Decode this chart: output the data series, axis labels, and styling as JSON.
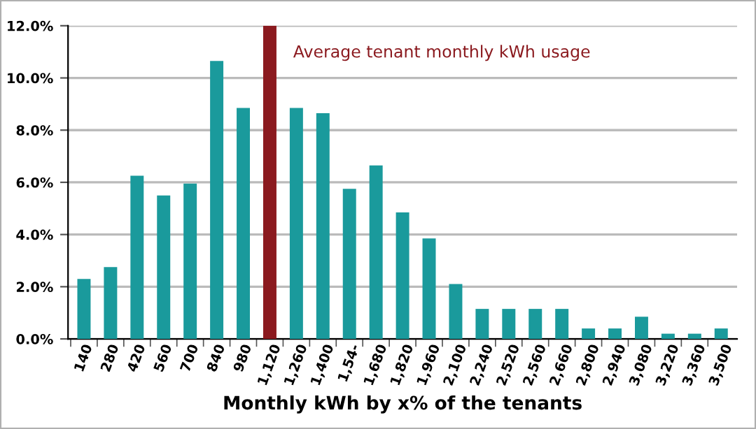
{
  "chart_data": {
    "type": "bar",
    "xlabel": "Monthly kWh by x% of the tenants",
    "categories": [
      "140",
      "280",
      "420",
      "560",
      "700",
      "840",
      "980",
      "1,120",
      "1,260",
      "1,400",
      "1,54-",
      "1,680",
      "1,820",
      "1,960",
      "2,100",
      "2,240",
      "2,520",
      "2,560",
      "2,660",
      "2,800",
      "2,940",
      "3,080",
      "3,220",
      "3,360",
      "3,500"
    ],
    "values": [
      2.3,
      2.75,
      6.25,
      5.5,
      5.95,
      10.65,
      8.85,
      12.0,
      8.85,
      8.65,
      5.75,
      6.65,
      4.85,
      3.85,
      2.1,
      1.15,
      1.15,
      1.15,
      1.15,
      0.4,
      0.4,
      0.85,
      0.2,
      0.2,
      0.4
    ],
    "colors": [
      "#1a9a9c",
      "#1a9a9c",
      "#1a9a9c",
      "#1a9a9c",
      "#1a9a9c",
      "#1a9a9c",
      "#1a9a9c",
      "#8b1a1f",
      "#1a9a9c",
      "#1a9a9c",
      "#1a9a9c",
      "#1a9a9c",
      "#1a9a9c",
      "#1a9a9c",
      "#1a9a9c",
      "#1a9a9c",
      "#1a9a9c",
      "#1a9a9c",
      "#1a9a9c",
      "#1a9a9c",
      "#1a9a9c",
      "#1a9a9c",
      "#1a9a9c",
      "#1a9a9c",
      "#1a9a9c"
    ],
    "ylim": [
      0,
      12
    ],
    "yticks": [
      {
        "value": 0,
        "label": "0.0%"
      },
      {
        "value": 2,
        "label": "2.0%"
      },
      {
        "value": 4,
        "label": "4.0%"
      },
      {
        "value": 6,
        "label": "6.0%"
      },
      {
        "value": 8,
        "label": "8.0%"
      },
      {
        "value": 10,
        "label": "10.0%"
      },
      {
        "value": 12,
        "label": "12.0%"
      }
    ],
    "grid": "y",
    "annotations": [
      {
        "text": "Average tenant monthly kWh usage",
        "x": "1,120",
        "y": 12
      }
    ]
  }
}
